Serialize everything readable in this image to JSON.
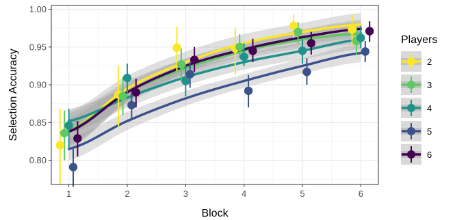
{
  "chart_data": {
    "type": "scatter",
    "xlabel": "Block",
    "ylabel": "Selection Accuracy",
    "xlim": [
      0.7,
      6.3
    ],
    "ylim": [
      0.768,
      1.005
    ],
    "x_ticks": [
      1,
      2,
      3,
      4,
      5,
      6
    ],
    "y_ticks": [
      0.8,
      0.85,
      0.9,
      0.95,
      1.0
    ],
    "y_tick_labels": [
      "0.80",
      "0.85",
      "0.90",
      "0.95",
      "1.00"
    ],
    "x_tick_labels": [
      "1",
      "2",
      "3",
      "4",
      "5",
      "6"
    ],
    "grid": true,
    "legend": {
      "title": "Players",
      "placement": "right"
    },
    "series": [
      {
        "name": "2",
        "color": "#FDE725",
        "offset": -0.15,
        "x": [
          1,
          2,
          3,
          4,
          5,
          6
        ],
        "y": [
          0.82,
          0.887,
          0.949,
          0.948,
          0.978,
          0.973
        ],
        "err_low": [
          0.768,
          0.845,
          0.918,
          0.913,
          0.962,
          0.952
        ],
        "err_high": [
          0.868,
          0.925,
          0.977,
          0.975,
          0.993,
          0.993
        ],
        "fit": [
          0.84,
          0.895,
          0.93,
          0.955,
          0.97,
          0.98
        ],
        "fit_low": [
          0.815,
          0.878,
          0.916,
          0.943,
          0.958,
          0.965
        ],
        "fit_high": [
          0.865,
          0.912,
          0.944,
          0.967,
          0.982,
          0.995
        ]
      },
      {
        "name": "3",
        "color": "#5EC962",
        "offset": -0.075,
        "x": [
          1,
          2,
          3,
          4,
          5,
          6
        ],
        "y": [
          0.836,
          0.885,
          0.927,
          0.95,
          0.97,
          0.958
        ],
        "err_low": [
          0.8,
          0.86,
          0.905,
          0.935,
          0.955,
          0.94
        ],
        "err_high": [
          0.866,
          0.91,
          0.948,
          0.967,
          0.983,
          0.975
        ],
        "fit": [
          0.84,
          0.89,
          0.922,
          0.945,
          0.96,
          0.968
        ],
        "fit_low": [
          0.818,
          0.875,
          0.91,
          0.934,
          0.948,
          0.953
        ],
        "fit_high": [
          0.862,
          0.905,
          0.934,
          0.956,
          0.972,
          0.983
        ]
      },
      {
        "name": "4",
        "color": "#21918C",
        "offset": 0.0,
        "x": [
          1,
          2,
          3,
          4,
          5,
          6
        ],
        "y": [
          0.846,
          0.909,
          0.905,
          0.937,
          0.945,
          0.962
        ],
        "err_low": [
          0.815,
          0.888,
          0.885,
          0.925,
          0.928,
          0.948
        ],
        "err_high": [
          0.868,
          0.928,
          0.927,
          0.955,
          0.96,
          0.978
        ],
        "fit": [
          0.852,
          0.883,
          0.91,
          0.93,
          0.945,
          0.96
        ],
        "fit_low": [
          0.836,
          0.87,
          0.899,
          0.92,
          0.934,
          0.947
        ],
        "fit_high": [
          0.868,
          0.896,
          0.921,
          0.94,
          0.956,
          0.973
        ]
      },
      {
        "name": "5",
        "color": "#3B528B",
        "offset": 0.075,
        "x": [
          1,
          2,
          3,
          4,
          5,
          6
        ],
        "y": [
          0.791,
          0.873,
          0.914,
          0.892,
          0.917,
          0.944
        ],
        "err_low": [
          0.765,
          0.855,
          0.896,
          0.87,
          0.9,
          0.93
        ],
        "err_high": [
          0.815,
          0.89,
          0.93,
          0.913,
          0.935,
          0.958
        ],
        "fit": [
          0.815,
          0.852,
          0.882,
          0.905,
          0.925,
          0.942
        ],
        "fit_low": [
          0.8,
          0.84,
          0.872,
          0.896,
          0.915,
          0.93
        ],
        "fit_high": [
          0.83,
          0.864,
          0.892,
          0.914,
          0.935,
          0.954
        ]
      },
      {
        "name": "6",
        "color": "#440154",
        "offset": 0.15,
        "x": [
          1,
          2,
          3,
          4,
          5,
          6
        ],
        "y": [
          0.829,
          0.89,
          0.933,
          0.945,
          0.955,
          0.971
        ],
        "err_low": [
          0.805,
          0.87,
          0.917,
          0.93,
          0.94,
          0.957
        ],
        "err_high": [
          0.852,
          0.908,
          0.95,
          0.961,
          0.97,
          0.984
        ],
        "fit": [
          0.838,
          0.89,
          0.925,
          0.947,
          0.963,
          0.974
        ],
        "fit_low": [
          0.82,
          0.878,
          0.915,
          0.938,
          0.953,
          0.962
        ],
        "fit_high": [
          0.856,
          0.902,
          0.935,
          0.956,
          0.973,
          0.986
        ]
      }
    ]
  }
}
